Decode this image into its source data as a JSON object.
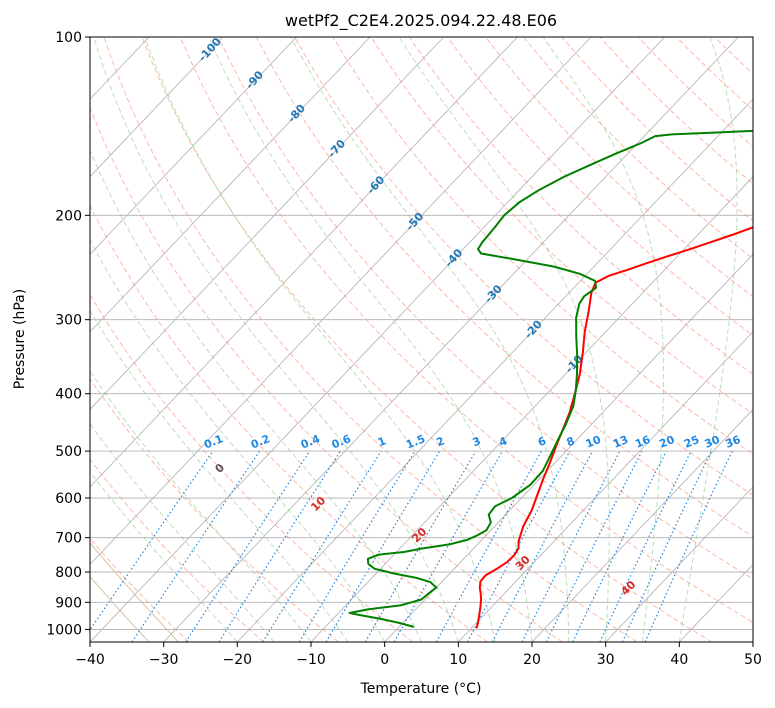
{
  "chart_data": {
    "type": "line",
    "subtype": "skew-T log-P diagram",
    "title": "wetPf2_C2E4.2025.094.22.48.E06",
    "xlabel": "Temperature (°C)",
    "ylabel": "Pressure (hPa)",
    "xlim": [
      -40,
      50
    ],
    "ylim": [
      1050,
      100
    ],
    "y_scale": "log",
    "grid": true,
    "xticks": [
      "−40",
      "−30",
      "−20",
      "−10",
      "0",
      "10",
      "20",
      "30",
      "40",
      "50"
    ],
    "yticks": [
      "100",
      "200",
      "300",
      "400",
      "500",
      "600",
      "700",
      "800",
      "900",
      "1000"
    ],
    "series": [
      {
        "color": "#ff0000",
        "points": [
          [
            10.7,
            995
          ],
          [
            10.2,
            975
          ],
          [
            9.5,
            950
          ],
          [
            8.6,
            920
          ],
          [
            7.6,
            890
          ],
          [
            6.8,
            870
          ],
          [
            5.9,
            850
          ],
          [
            5.2,
            830
          ],
          [
            5.1,
            810
          ],
          [
            5.8,
            790
          ],
          [
            6.3,
            770
          ],
          [
            6.4,
            750
          ],
          [
            6.1,
            730
          ],
          [
            5.2,
            710
          ],
          [
            3.9,
            670
          ],
          [
            3.0,
            630
          ],
          [
            2.0,
            600
          ],
          [
            0.6,
            560
          ],
          [
            -0.8,
            520
          ],
          [
            -2.0,
            490
          ],
          [
            -3.2,
            460
          ],
          [
            -4.5,
            430
          ],
          [
            -6.2,
            400
          ],
          [
            -8.1,
            370
          ],
          [
            -10.5,
            340
          ],
          [
            -12.8,
            315
          ],
          [
            -15.0,
            290
          ],
          [
            -17.0,
            270
          ],
          [
            -17.7,
            260
          ],
          [
            -16.8,
            253
          ],
          [
            -15.0,
            247
          ],
          [
            -13.3,
            241
          ],
          [
            -11.5,
            235
          ],
          [
            -9.5,
            229
          ],
          [
            -7.3,
            222
          ],
          [
            -5.1,
            215
          ],
          [
            -3.0,
            208
          ],
          [
            -0.7,
            201
          ],
          [
            1.3,
            195
          ],
          [
            3.8,
            188
          ],
          [
            6.0,
            182
          ],
          [
            8.2,
            176
          ],
          [
            9.8,
            171
          ],
          [
            11.4,
            166
          ],
          [
            12.9,
            161
          ],
          [
            14.3,
            157
          ],
          [
            15.5,
            152
          ],
          [
            16.4,
            147
          ],
          [
            17.2,
            142
          ],
          [
            17.9,
            137
          ],
          [
            18.6,
            132
          ],
          [
            19.4,
            127
          ],
          [
            20.2,
            123
          ],
          [
            21.1,
            119
          ],
          [
            22.1,
            115
          ],
          [
            22.8,
            111
          ],
          [
            23.7,
            106
          ],
          [
            24.4,
            103
          ],
          [
            25.2,
            100
          ]
        ]
      },
      {
        "color": "#008000",
        "points": [
          [
            2.0,
            990
          ],
          [
            -0.5,
            975
          ],
          [
            -3.5,
            960
          ],
          [
            -7.0,
            945
          ],
          [
            -8.5,
            938
          ],
          [
            -6.5,
            925
          ],
          [
            -2.5,
            910
          ],
          [
            -0.5,
            890
          ],
          [
            -0.3,
            870
          ],
          [
            0.0,
            850
          ],
          [
            -1.5,
            832
          ],
          [
            -4.0,
            818
          ],
          [
            -7.5,
            805
          ],
          [
            -10.8,
            790
          ],
          [
            -12.3,
            775
          ],
          [
            -13.0,
            760
          ],
          [
            -12.1,
            748
          ],
          [
            -9.0,
            740
          ],
          [
            -7.0,
            730
          ],
          [
            -3.7,
            718
          ],
          [
            -2.0,
            706
          ],
          [
            -1.2,
            694
          ],
          [
            -0.6,
            680
          ],
          [
            -1.0,
            660
          ],
          [
            -2.3,
            640
          ],
          [
            -2.5,
            620
          ],
          [
            -1.3,
            600
          ],
          [
            -0.5,
            570
          ],
          [
            -0.6,
            540
          ],
          [
            -1.5,
            510
          ],
          [
            -2.5,
            480
          ],
          [
            -3.5,
            450
          ],
          [
            -4.8,
            420
          ],
          [
            -6.5,
            395
          ],
          [
            -8.5,
            370
          ],
          [
            -10.8,
            345
          ],
          [
            -13.2,
            322
          ],
          [
            -15.8,
            298
          ],
          [
            -17.2,
            282
          ],
          [
            -17.5,
            274
          ],
          [
            -17.0,
            265
          ],
          [
            -18.0,
            258
          ],
          [
            -21.0,
            251
          ],
          [
            -25.5,
            244
          ],
          [
            -32.0,
            237
          ],
          [
            -37.0,
            232
          ],
          [
            -38.0,
            228
          ],
          [
            -38.3,
            222
          ],
          [
            -38.5,
            210
          ],
          [
            -38.8,
            200
          ],
          [
            -38.4,
            190
          ],
          [
            -37.3,
            181
          ],
          [
            -35.6,
            172
          ],
          [
            -33.5,
            164
          ],
          [
            -31.5,
            157
          ],
          [
            -29.5,
            151
          ],
          [
            -28.5,
            147
          ],
          [
            -26.5,
            146
          ],
          [
            -21.0,
            145
          ],
          [
            -15.5,
            144
          ],
          [
            -13.5,
            143
          ],
          [
            -12.8,
            141
          ],
          [
            -12.5,
            139
          ],
          [
            -12.6,
            136
          ],
          [
            -13.5,
            133
          ],
          [
            -15.3,
            130
          ],
          [
            -17.0,
            127
          ],
          [
            -17.8,
            125
          ],
          [
            -17.6,
            123
          ],
          [
            -16.7,
            121
          ],
          [
            -16.2,
            119
          ],
          [
            -16.0,
            118
          ],
          [
            -16.5,
            116
          ],
          [
            -17.8,
            114
          ],
          [
            -19.5,
            112
          ],
          [
            -21.0,
            110
          ],
          [
            -21.3,
            108
          ],
          [
            -20.1,
            106
          ],
          [
            -18.3,
            104.5
          ],
          [
            -17.5,
            103
          ],
          [
            -17.3,
            101
          ],
          [
            -17.4,
            100
          ]
        ]
      }
    ],
    "isotherm_labels": [
      "-100",
      "-90",
      "-80",
      "-70",
      "-60",
      "-50",
      "-40",
      "-30",
      "-20",
      "-10"
    ],
    "dry_adiabat_labels": [
      "0",
      "10",
      "20",
      "30",
      "40"
    ],
    "mixing_ratio_labels": [
      "0.1",
      "0.2",
      "0.4",
      "0.6",
      "1",
      "1.5",
      "2",
      "3",
      "4",
      "6",
      "8",
      "10",
      "13",
      "16",
      "20",
      "25",
      "30",
      "36"
    ]
  },
  "colors": {
    "temperature": "#ff0000",
    "dewpoint": "#008000",
    "grid": "#b0b0b0",
    "dry_adiabat": "#fa8a6d",
    "moist_adiabat": "#90c890",
    "mixing_ratio": "#1e88e5",
    "isotherm_label": "#1f77b4",
    "dry_adiabat_label": "#d62728",
    "theta_e": "#d2b48c"
  }
}
